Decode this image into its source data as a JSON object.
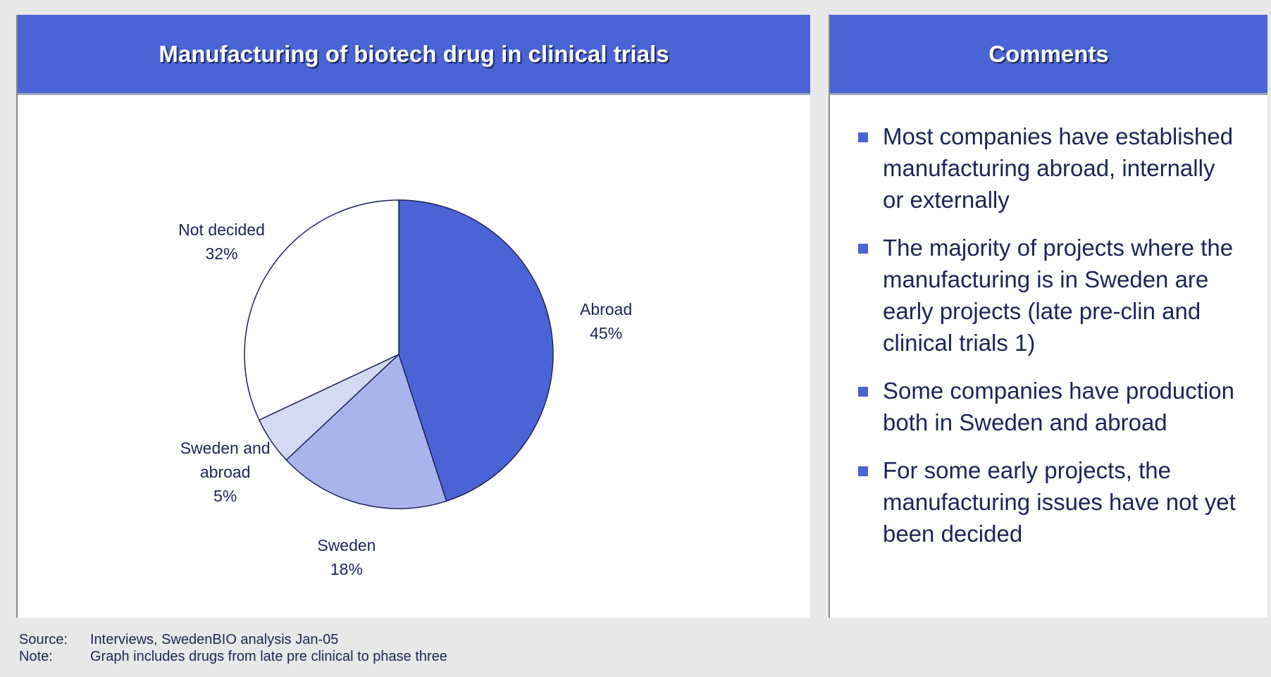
{
  "chart_data": {
    "type": "pie",
    "title": "Manufacturing of biotech drug in clinical trials",
    "categories": [
      "Abroad",
      "Sweden",
      "Sweden and abroad",
      "Not decided"
    ],
    "values": [
      45,
      18,
      5,
      32
    ],
    "value_labels": [
      "45%",
      "18%",
      "5%",
      "32%"
    ],
    "colors": [
      "#4a64d6",
      "#a8b4ea",
      "#d4d9f4",
      "#ffffff"
    ]
  },
  "comments": {
    "title": "Comments",
    "items": [
      "Most companies have established manufacturing abroad, internally or externally",
      "The majority of projects where the manufacturing is in Sweden are early projects (late pre-clin and clinical trials 1)",
      "Some companies have production both in Sweden and abroad",
      "For some early projects, the manufacturing issues have not yet been decided"
    ]
  },
  "footnotes": [
    {
      "label": "Source:",
      "text": "Interviews, SwedenBIO analysis Jan-05"
    },
    {
      "label": "Note:",
      "text": "Graph includes drugs from late pre clinical to phase three"
    }
  ]
}
